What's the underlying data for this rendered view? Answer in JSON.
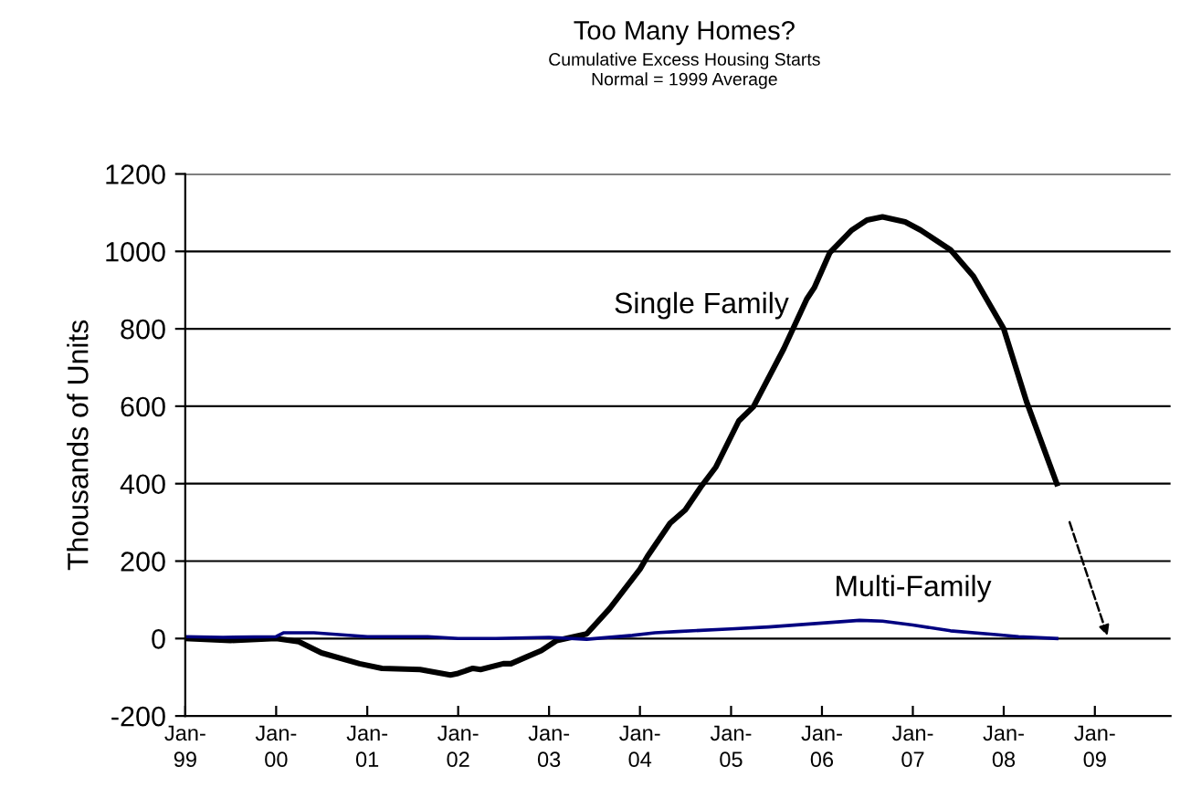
{
  "chart_data": {
    "type": "line",
    "title": "Too Many Homes?",
    "subtitle": "Cumulative Excess Housing Starts\nNormal = 1999 Average",
    "ylabel": "Thousands of Units",
    "xlim": [
      "1999-01",
      "2009-11"
    ],
    "xticks": [
      {
        "value": "1999-01",
        "label": "Jan-\n99"
      },
      {
        "value": "2000-01",
        "label": "Jan-\n00"
      },
      {
        "value": "2001-01",
        "label": "Jan-\n01"
      },
      {
        "value": "2002-01",
        "label": "Jan-\n02"
      },
      {
        "value": "2003-01",
        "label": "Jan-\n03"
      },
      {
        "value": "2004-01",
        "label": "Jan-\n04"
      },
      {
        "value": "2005-01",
        "label": "Jan-\n05"
      },
      {
        "value": "2006-01",
        "label": "Jan-\n06"
      },
      {
        "value": "2007-01",
        "label": "Jan-\n07"
      },
      {
        "value": "2008-01",
        "label": "Jan-\n08"
      },
      {
        "value": "2009-01",
        "label": "Jan-\n09"
      }
    ],
    "ylim": [
      -200,
      1200
    ],
    "yticks": [
      -200,
      0,
      200,
      400,
      600,
      800,
      1000,
      1200
    ],
    "grid": "y",
    "legend": false,
    "series": [
      {
        "color": "#000000",
        "x": [
          "1999-01",
          "1999-07",
          "2000-01",
          "2000-04",
          "2000-07",
          "2000-12",
          "2001-03",
          "2001-08",
          "2001-12",
          "2002-01",
          "2002-03",
          "2002-04",
          "2002-07",
          "2002-08",
          "2002-10",
          "2002-12",
          "2003-02",
          "2003-06",
          "2003-09",
          "2004-01",
          "2004-02",
          "2004-05",
          "2004-07",
          "2004-09",
          "2004-11",
          "2005-02",
          "2005-04",
          "2005-08",
          "2005-11",
          "2005-12",
          "2006-02",
          "2006-05",
          "2006-07",
          "2006-09",
          "2006-12",
          "2007-02",
          "2007-06",
          "2007-09",
          "2008-01",
          "2008-04",
          "2008-08"
        ],
        "values": [
          0,
          -5,
          0,
          -8,
          -37,
          -65,
          -77,
          -80,
          -94,
          -90,
          -77,
          -80,
          -65,
          -65,
          -48,
          -31,
          -5,
          12,
          77,
          179,
          213,
          298,
          332,
          391,
          443,
          562,
          599,
          749,
          877,
          906,
          996,
          1055,
          1081,
          1089,
          1076,
          1055,
          1004,
          936,
          800,
          613,
          400
        ]
      },
      {
        "color": "#000080",
        "x": [
          "1999-01",
          "1999-06",
          "2000-01",
          "2000-02",
          "2000-06",
          "2001-01",
          "2001-09",
          "2002-01",
          "2002-06",
          "2003-01",
          "2003-06",
          "2003-12",
          "2004-03",
          "2004-06",
          "2005-01",
          "2005-06",
          "2006-01",
          "2006-06",
          "2006-09",
          "2007-01",
          "2007-06",
          "2007-12",
          "2008-03",
          "2008-08"
        ],
        "values": [
          5,
          3,
          5,
          15,
          15,
          5,
          5,
          0,
          0,
          3,
          -2,
          8,
          15,
          18,
          25,
          30,
          40,
          47,
          45,
          35,
          20,
          10,
          5,
          0
        ]
      }
    ],
    "annotations": [
      {
        "text": "Single Family",
        "x": "2005-10",
        "y": 860
      },
      {
        "text": "Multi-Family",
        "x": "2007-01",
        "y": 35
      }
    ]
  }
}
